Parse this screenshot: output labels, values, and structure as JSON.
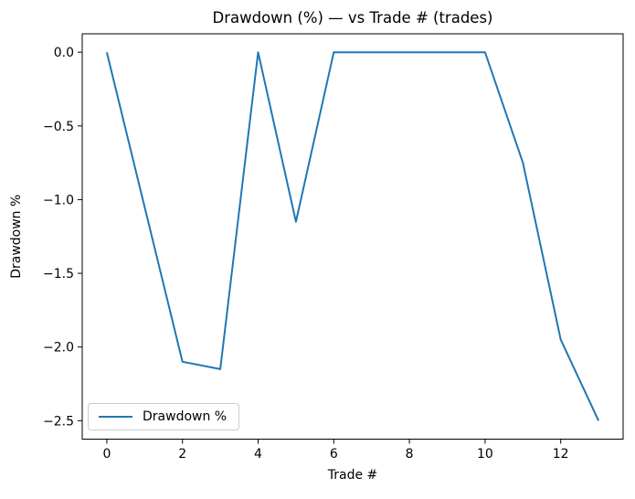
{
  "figure": {
    "title": "Drawdown (%) — vs Trade # (trades)",
    "xlabel": "Trade #",
    "ylabel": "Drawdown %"
  },
  "legend": {
    "label": "Drawdown %",
    "line_color": "#1f77b4"
  },
  "chart_data": {
    "type": "line",
    "title": "Drawdown (%) — vs Trade # (trades)",
    "xlabel": "Trade #",
    "ylabel": "Drawdown %",
    "series": [
      {
        "name": "Drawdown %",
        "color": "#1f77b4",
        "x": [
          0,
          1,
          2,
          3,
          4,
          5,
          6,
          7,
          8,
          9,
          10,
          11,
          12,
          13
        ],
        "y": [
          0.0,
          -1.05,
          -2.1,
          -2.15,
          0.0,
          -1.15,
          0.0,
          0.0,
          0.0,
          0.0,
          0.0,
          -0.75,
          -1.95,
          -2.5
        ]
      }
    ],
    "xlim": [
      -0.65,
      13.65
    ],
    "ylim": [
      -2.625,
      0.125
    ],
    "xticks": [
      0,
      2,
      4,
      6,
      8,
      10,
      12
    ],
    "xtick_labels": [
      "0",
      "2",
      "4",
      "6",
      "8",
      "10",
      "12"
    ],
    "yticks": [
      0.0,
      -0.5,
      -1.0,
      -1.5,
      -2.0,
      -2.5
    ],
    "ytick_labels": [
      "0.0",
      "−0.5",
      "−1.0",
      "−1.5",
      "−2.0",
      "−2.5"
    ],
    "grid": false,
    "legend_position": "lower left"
  }
}
